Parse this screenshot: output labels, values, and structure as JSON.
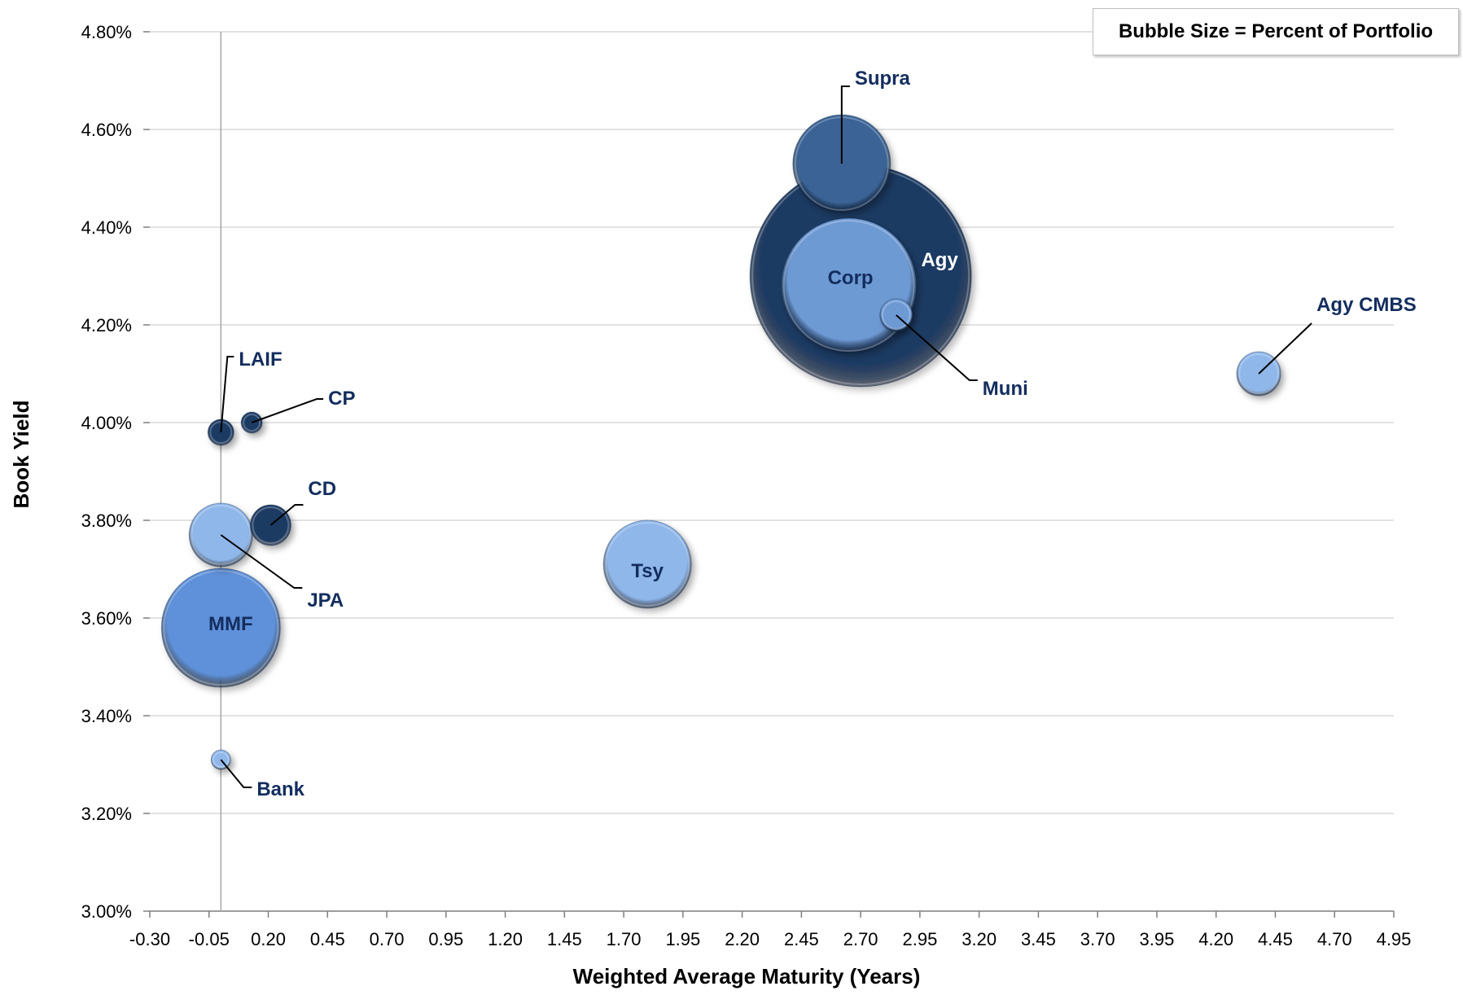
{
  "chart_data": {
    "type": "scatter",
    "subtype": "bubble",
    "xlabel": "Weighted Average Maturity (Years)",
    "ylabel": "Book Yield",
    "xlim": [
      -0.3,
      4.95
    ],
    "ylim": [
      3.0,
      4.8
    ],
    "x_ticks": [
      "-0.30",
      "-0.05",
      "0.20",
      "0.45",
      "0.70",
      "0.95",
      "1.20",
      "1.45",
      "1.70",
      "1.95",
      "2.20",
      "2.45",
      "2.70",
      "2.95",
      "3.20",
      "3.45",
      "3.70",
      "3.95",
      "4.20",
      "4.45",
      "4.70",
      "4.95"
    ],
    "y_ticks": [
      "3.00%",
      "3.20%",
      "3.40%",
      "3.60%",
      "3.80%",
      "4.00%",
      "4.20%",
      "4.40%",
      "4.60%",
      "4.80%"
    ],
    "grid": "horizontal",
    "legend_note": "Bubble Size = Percent of Portfolio",
    "legend_position": "top-right",
    "points": [
      {
        "label": "Agy",
        "x": 2.7,
        "y": 4.3,
        "size": 136,
        "color": "#1f3b63",
        "label_color": "#ffffff"
      },
      {
        "label": "Supra",
        "x": 2.62,
        "y": 4.53,
        "size": 60,
        "color": "#3b6496",
        "label_color": "#132d5e"
      },
      {
        "label": "Corp",
        "x": 2.65,
        "y": 4.28,
        "size": 83,
        "color": "#6e9ad4",
        "label_color": "#132d5e"
      },
      {
        "label": "Muni",
        "x": 2.85,
        "y": 4.22,
        "size": 20,
        "color": "#6e9ad4",
        "label_color": "#132d5e"
      },
      {
        "label": "Agy CMBS",
        "x": 4.38,
        "y": 4.1,
        "size": 27,
        "color": "#8fb7ea",
        "label_color": "#132d5e"
      },
      {
        "label": "Tsy",
        "x": 1.8,
        "y": 3.71,
        "size": 54,
        "color": "#8fb7ea",
        "label_color": "#132d5e"
      },
      {
        "label": "MMF",
        "x": 0.0,
        "y": 3.58,
        "size": 73,
        "color": "#5e91da",
        "label_color": "#132d5e"
      },
      {
        "label": "JPA",
        "x": 0.0,
        "y": 3.77,
        "size": 39,
        "color": "#8fb7ea",
        "label_color": "#132d5e"
      },
      {
        "label": "CD",
        "x": 0.21,
        "y": 3.79,
        "size": 25,
        "color": "#1f3b63",
        "label_color": "#132d5e"
      },
      {
        "label": "LAIF",
        "x": 0.0,
        "y": 3.98,
        "size": 16,
        "color": "#1f3b63",
        "label_color": "#132d5e"
      },
      {
        "label": "CP",
        "x": 0.13,
        "y": 4.0,
        "size": 13,
        "color": "#1f3b63",
        "label_color": "#132d5e"
      },
      {
        "label": "Bank",
        "x": 0.0,
        "y": 3.31,
        "size": 12,
        "color": "#8fb7ea",
        "label_color": "#132d5e"
      }
    ]
  }
}
